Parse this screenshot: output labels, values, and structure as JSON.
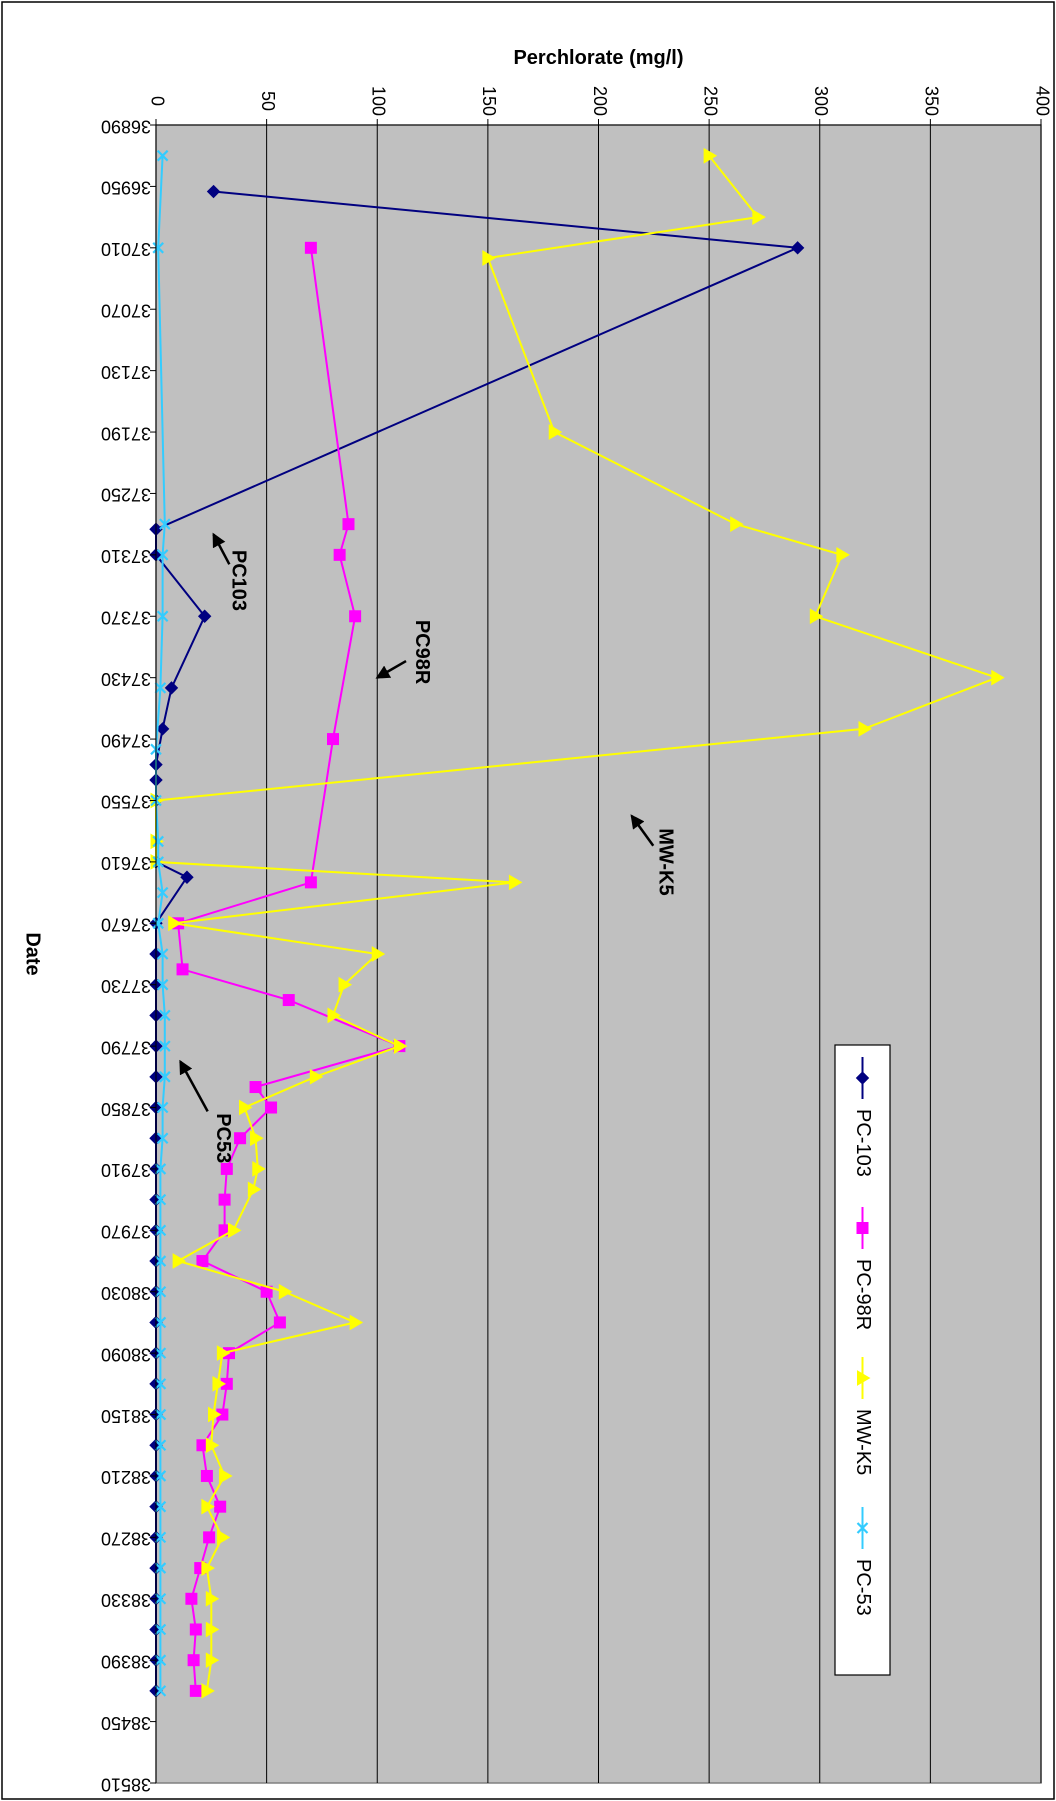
{
  "chart_data": {
    "type": "line",
    "xlabel": "Date",
    "ylabel": "Perchlorate (mg/l)",
    "xlim": [
      36890,
      38510
    ],
    "ylim": [
      0,
      400
    ],
    "x_ticks": [
      36890,
      36950,
      37010,
      37070,
      37130,
      37190,
      37250,
      37310,
      37370,
      37430,
      37490,
      37550,
      37610,
      37670,
      37730,
      37790,
      37850,
      37910,
      37970,
      38030,
      38090,
      38150,
      38210,
      38270,
      38330,
      38390,
      38450,
      38510
    ],
    "y_ticks": [
      0,
      50,
      100,
      150,
      200,
      250,
      300,
      350,
      400
    ],
    "grid": true,
    "legend_position": "right",
    "plot_background": "#c0c0c0",
    "series": [
      {
        "name": "PC-103",
        "color": "#000080",
        "marker": "diamond",
        "points": [
          [
            36955,
            26
          ],
          [
            37010,
            290
          ],
          [
            37285,
            0
          ],
          [
            37310,
            0
          ],
          [
            37370,
            22
          ],
          [
            37440,
            7
          ],
          [
            37480,
            3
          ],
          [
            37515,
            0
          ],
          [
            37530,
            0
          ],
          [
            37550,
            0
          ],
          [
            37610,
            0
          ],
          [
            37625,
            14
          ],
          [
            37670,
            0
          ],
          [
            37700,
            0
          ],
          [
            37730,
            0
          ],
          [
            37760,
            0
          ],
          [
            37790,
            0
          ],
          [
            37820,
            0
          ],
          [
            37850,
            0
          ],
          [
            37880,
            0
          ],
          [
            37910,
            0
          ],
          [
            37940,
            0
          ],
          [
            37970,
            0
          ],
          [
            38000,
            0
          ],
          [
            38030,
            0
          ],
          [
            38060,
            0
          ],
          [
            38090,
            0
          ],
          [
            38120,
            0
          ],
          [
            38150,
            0
          ],
          [
            38180,
            0
          ],
          [
            38210,
            0
          ],
          [
            38240,
            0
          ],
          [
            38270,
            0
          ],
          [
            38300,
            0
          ],
          [
            38330,
            0
          ],
          [
            38360,
            0
          ],
          [
            38390,
            0
          ],
          [
            38420,
            0
          ]
        ]
      },
      {
        "name": "PC-98R",
        "color": "#ff00ff",
        "marker": "square",
        "points": [
          [
            37010,
            70
          ],
          [
            37280,
            87
          ],
          [
            37310,
            83
          ],
          [
            37370,
            90
          ],
          [
            37490,
            80
          ],
          [
            37630,
            70
          ],
          [
            37670,
            10
          ],
          [
            37715,
            12
          ],
          [
            37745,
            60
          ],
          [
            37790,
            110
          ],
          [
            37830,
            45
          ],
          [
            37850,
            52
          ],
          [
            37880,
            38
          ],
          [
            37910,
            32
          ],
          [
            37940,
            31
          ],
          [
            37970,
            31
          ],
          [
            38000,
            21
          ],
          [
            38030,
            50
          ],
          [
            38060,
            56
          ],
          [
            38090,
            33
          ],
          [
            38120,
            32
          ],
          [
            38150,
            30
          ],
          [
            38180,
            21
          ],
          [
            38210,
            23
          ],
          [
            38240,
            29
          ],
          [
            38270,
            24
          ],
          [
            38300,
            20
          ],
          [
            38330,
            16
          ],
          [
            38360,
            18
          ],
          [
            38390,
            17
          ],
          [
            38420,
            18
          ]
        ]
      },
      {
        "name": "MW-K5",
        "color": "#ffff00",
        "marker": "triangle",
        "points": [
          [
            36920,
            250
          ],
          [
            36980,
            272
          ],
          [
            37020,
            150
          ],
          [
            37190,
            180
          ],
          [
            37280,
            262
          ],
          [
            37310,
            310
          ],
          [
            37370,
            298
          ],
          [
            37430,
            380
          ],
          [
            37480,
            320
          ],
          [
            37550,
            0
          ],
          [
            37590,
            0
          ],
          [
            37610,
            0
          ],
          [
            37630,
            162
          ],
          [
            37670,
            8
          ],
          [
            37700,
            100
          ],
          [
            37730,
            85
          ],
          [
            37760,
            80
          ],
          [
            37790,
            110
          ],
          [
            37820,
            72
          ],
          [
            37850,
            40
          ],
          [
            37880,
            45
          ],
          [
            37910,
            46
          ],
          [
            37930,
            44
          ],
          [
            37970,
            35
          ],
          [
            38000,
            10
          ],
          [
            38030,
            58
          ],
          [
            38060,
            90
          ],
          [
            38090,
            30
          ],
          [
            38120,
            28
          ],
          [
            38150,
            26
          ],
          [
            38180,
            25
          ],
          [
            38210,
            31
          ],
          [
            38240,
            23
          ],
          [
            38270,
            30
          ],
          [
            38300,
            23
          ],
          [
            38330,
            25
          ],
          [
            38360,
            25
          ],
          [
            38390,
            25
          ],
          [
            38420,
            23
          ]
        ]
      },
      {
        "name": "PC-53",
        "color": "#33ccff",
        "marker": "x",
        "points": [
          [
            36920,
            3
          ],
          [
            37010,
            1
          ],
          [
            37280,
            4
          ],
          [
            37310,
            3
          ],
          [
            37370,
            3
          ],
          [
            37440,
            2
          ],
          [
            37500,
            0
          ],
          [
            37550,
            0
          ],
          [
            37590,
            1
          ],
          [
            37610,
            1
          ],
          [
            37640,
            3
          ],
          [
            37670,
            1
          ],
          [
            37700,
            3
          ],
          [
            37730,
            3
          ],
          [
            37760,
            4
          ],
          [
            37790,
            4
          ],
          [
            37820,
            4
          ],
          [
            37850,
            3
          ],
          [
            37880,
            3
          ],
          [
            37910,
            2
          ],
          [
            37940,
            2
          ],
          [
            37970,
            2
          ],
          [
            38000,
            2
          ],
          [
            38030,
            2
          ],
          [
            38060,
            2
          ],
          [
            38090,
            2
          ],
          [
            38120,
            2
          ],
          [
            38150,
            2
          ],
          [
            38180,
            2
          ],
          [
            38210,
            2
          ],
          [
            38240,
            2
          ],
          [
            38270,
            2
          ],
          [
            38300,
            2
          ],
          [
            38330,
            2
          ],
          [
            38360,
            2
          ],
          [
            38390,
            2
          ],
          [
            38420,
            2
          ]
        ]
      }
    ],
    "annotations": [
      {
        "text": "PC103",
        "series": "PC-103",
        "text_at": [
          37335,
          37
        ],
        "arrow_to": [
          37290,
          26
        ]
      },
      {
        "text": "PC98R",
        "series": "PC-98R",
        "text_at": [
          37405,
          120
        ],
        "arrow_to": [
          37430,
          100
        ]
      },
      {
        "text": "MW-K5",
        "series": "MW-K5",
        "text_at": [
          37610,
          230
        ],
        "arrow_to": [
          37565,
          215
        ]
      },
      {
        "text": "PC53",
        "series": "PC-53",
        "text_at": [
          37880,
          30
        ],
        "arrow_to": [
          37805,
          11
        ]
      }
    ]
  }
}
